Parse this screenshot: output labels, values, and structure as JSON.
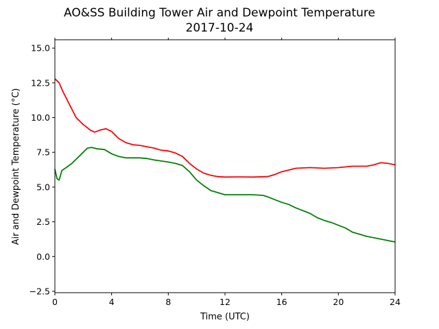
{
  "chart_data": {
    "type": "line",
    "title": "AO&SS Building Tower Air and Dewpoint Temperature",
    "subtitle": "2017-10-24",
    "xlabel": "Time (UTC)",
    "ylabel": "Air and Dewpoint Temperature (°C)",
    "xlim": [
      0,
      24
    ],
    "ylim": [
      -2.6,
      15.6
    ],
    "xticks": [
      0,
      4,
      8,
      12,
      16,
      20,
      24
    ],
    "xtick_labels": [
      "0",
      "4",
      "8",
      "12",
      "16",
      "20",
      "24"
    ],
    "yticks": [
      -2.5,
      0.0,
      2.5,
      5.0,
      7.5,
      10.0,
      12.5,
      15.0
    ],
    "ytick_labels": [
      "−2.5",
      "0.0",
      "2.5",
      "5.0",
      "7.5",
      "10.0",
      "12.5",
      "15.0"
    ],
    "grid": false,
    "series": [
      {
        "color": "#ff0000",
        "x": [
          0.0,
          0.3,
          0.6,
          1.0,
          1.5,
          2.0,
          2.5,
          2.8,
          3.2,
          3.6,
          4.0,
          4.5,
          5.0,
          5.5,
          6.0,
          7.0,
          7.5,
          8.0,
          8.5,
          9.0,
          9.5,
          10.0,
          10.5,
          11.0,
          11.5,
          12.0,
          13.0,
          14.0,
          15.0,
          15.5,
          16.0,
          17.0,
          18.0,
          19.0,
          20.0,
          21.0,
          22.0,
          22.5,
          23.0,
          23.5,
          24.0
        ],
        "y": [
          12.8,
          12.5,
          11.8,
          11.0,
          10.0,
          9.5,
          9.1,
          8.95,
          9.1,
          9.2,
          9.0,
          8.5,
          8.2,
          8.05,
          8.0,
          7.8,
          7.65,
          7.6,
          7.45,
          7.2,
          6.7,
          6.3,
          6.0,
          5.85,
          5.75,
          5.72,
          5.73,
          5.72,
          5.75,
          5.9,
          6.1,
          6.35,
          6.4,
          6.35,
          6.4,
          6.5,
          6.5,
          6.6,
          6.75,
          6.7,
          6.6
        ]
      },
      {
        "color": "#008000",
        "x": [
          0.0,
          0.15,
          0.3,
          0.5,
          0.8,
          1.2,
          1.6,
          2.0,
          2.3,
          2.6,
          3.0,
          3.5,
          4.0,
          4.5,
          5.0,
          6.0,
          6.5,
          7.0,
          8.0,
          8.5,
          9.0,
          9.5,
          10.0,
          10.5,
          11.0,
          12.0,
          13.0,
          14.0,
          14.7,
          15.0,
          15.5,
          16.0,
          16.5,
          17.0,
          18.0,
          18.5,
          19.0,
          19.5,
          20.0,
          20.5,
          21.0,
          21.5,
          22.0,
          22.5,
          23.0,
          23.5,
          24.0
        ],
        "y": [
          6.3,
          5.6,
          5.5,
          6.2,
          6.4,
          6.7,
          7.1,
          7.5,
          7.8,
          7.85,
          7.75,
          7.7,
          7.4,
          7.2,
          7.1,
          7.1,
          7.05,
          6.95,
          6.8,
          6.7,
          6.55,
          6.1,
          5.5,
          5.1,
          4.75,
          4.45,
          4.45,
          4.45,
          4.4,
          4.3,
          4.1,
          3.9,
          3.75,
          3.5,
          3.1,
          2.8,
          2.6,
          2.45,
          2.25,
          2.05,
          1.75,
          1.6,
          1.45,
          1.35,
          1.25,
          1.15,
          1.05
        ]
      }
    ]
  }
}
